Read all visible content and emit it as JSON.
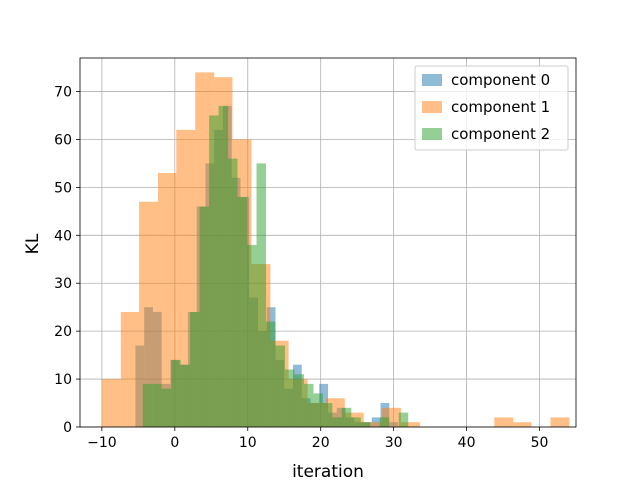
{
  "chart_data": {
    "type": "histogram",
    "xlabel": "iteration",
    "ylabel": "KL",
    "xlim": [
      -13,
      55
    ],
    "ylim": [
      0,
      77
    ],
    "xticks": [
      -10,
      0,
      10,
      20,
      30,
      40,
      50
    ],
    "yticks": [
      0,
      10,
      20,
      30,
      40,
      50,
      60,
      70
    ],
    "grid": true,
    "legend_position": "top-right",
    "series": [
      {
        "name": "component 0",
        "color": "#1f77b4",
        "opacity": 0.5,
        "bins": [
          [
            -5.4,
            -4.2,
            17
          ],
          [
            -4.2,
            -3.0,
            25
          ],
          [
            -3.0,
            -1.8,
            24
          ],
          [
            -1.8,
            -0.6,
            9
          ],
          [
            -0.6,
            0.6,
            14
          ],
          [
            0.6,
            1.8,
            13
          ],
          [
            1.8,
            3.0,
            24
          ],
          [
            3.0,
            4.2,
            46
          ],
          [
            4.2,
            5.4,
            55
          ],
          [
            5.4,
            6.6,
            62
          ],
          [
            6.6,
            7.8,
            67
          ],
          [
            7.8,
            9.0,
            52
          ],
          [
            9.0,
            10.2,
            48
          ],
          [
            10.2,
            11.4,
            27
          ],
          [
            11.4,
            12.6,
            20
          ],
          [
            12.6,
            13.8,
            25
          ],
          [
            13.8,
            15.0,
            14
          ],
          [
            15.0,
            16.2,
            8
          ],
          [
            16.2,
            17.4,
            13
          ],
          [
            17.4,
            18.6,
            6
          ],
          [
            18.6,
            19.8,
            5
          ],
          [
            19.8,
            21.0,
            9
          ],
          [
            21.0,
            22.2,
            3
          ],
          [
            22.2,
            23.4,
            4
          ],
          [
            23.4,
            24.6,
            2
          ],
          [
            24.6,
            25.8,
            1
          ],
          [
            25.8,
            27.0,
            1
          ],
          [
            27.0,
            28.2,
            2
          ],
          [
            28.2,
            29.4,
            5
          ],
          [
            29.4,
            30.6,
            1
          ]
        ]
      },
      {
        "name": "component 1",
        "color": "#ff7f0e",
        "opacity": 0.5,
        "bins": [
          [
            -10.0,
            -7.4,
            10
          ],
          [
            -7.4,
            -4.9,
            24
          ],
          [
            -4.9,
            -2.3,
            47
          ],
          [
            -2.3,
            0.2,
            53
          ],
          [
            0.2,
            2.8,
            62
          ],
          [
            2.8,
            5.4,
            74
          ],
          [
            5.4,
            7.9,
            73
          ],
          [
            7.9,
            10.5,
            60
          ],
          [
            10.5,
            13.1,
            34
          ],
          [
            13.1,
            15.6,
            18
          ],
          [
            15.6,
            18.2,
            10
          ],
          [
            18.2,
            20.7,
            5
          ],
          [
            20.7,
            23.3,
            6
          ],
          [
            23.3,
            25.9,
            3
          ],
          [
            25.9,
            28.4,
            1
          ],
          [
            28.4,
            31.0,
            4
          ],
          [
            31.0,
            33.6,
            1
          ],
          [
            33.6,
            36.1,
            0
          ],
          [
            36.1,
            38.7,
            0
          ],
          [
            38.7,
            41.2,
            0
          ],
          [
            41.2,
            43.8,
            0
          ],
          [
            43.8,
            46.4,
            2
          ],
          [
            46.4,
            48.9,
            1
          ],
          [
            48.9,
            51.5,
            0
          ],
          [
            51.5,
            54.1,
            2
          ]
        ]
      },
      {
        "name": "component 2",
        "color": "#2ca02c",
        "opacity": 0.5,
        "bins": [
          [
            -4.4,
            -3.1,
            9
          ],
          [
            -3.1,
            -1.8,
            9
          ],
          [
            -1.8,
            -0.5,
            8
          ],
          [
            -0.5,
            0.8,
            14
          ],
          [
            0.8,
            2.1,
            13
          ],
          [
            2.1,
            3.4,
            24
          ],
          [
            3.4,
            4.7,
            46
          ],
          [
            4.7,
            6.0,
            65
          ],
          [
            6.0,
            7.3,
            67
          ],
          [
            7.3,
            8.6,
            56
          ],
          [
            8.6,
            9.9,
            48
          ],
          [
            9.9,
            11.2,
            38
          ],
          [
            11.2,
            12.5,
            55
          ],
          [
            12.5,
            13.8,
            22
          ],
          [
            13.8,
            15.1,
            17
          ],
          [
            15.1,
            16.4,
            12
          ],
          [
            16.4,
            17.7,
            11
          ],
          [
            17.7,
            19.0,
            9
          ],
          [
            19.0,
            20.3,
            7
          ],
          [
            20.3,
            21.6,
            5
          ],
          [
            21.6,
            22.9,
            2
          ],
          [
            22.9,
            24.2,
            4
          ],
          [
            24.2,
            25.5,
            2
          ],
          [
            25.5,
            26.8,
            1
          ],
          [
            26.8,
            28.1,
            0
          ],
          [
            28.1,
            29.4,
            2
          ],
          [
            29.4,
            30.7,
            0
          ],
          [
            30.7,
            32.0,
            3
          ]
        ]
      }
    ]
  }
}
